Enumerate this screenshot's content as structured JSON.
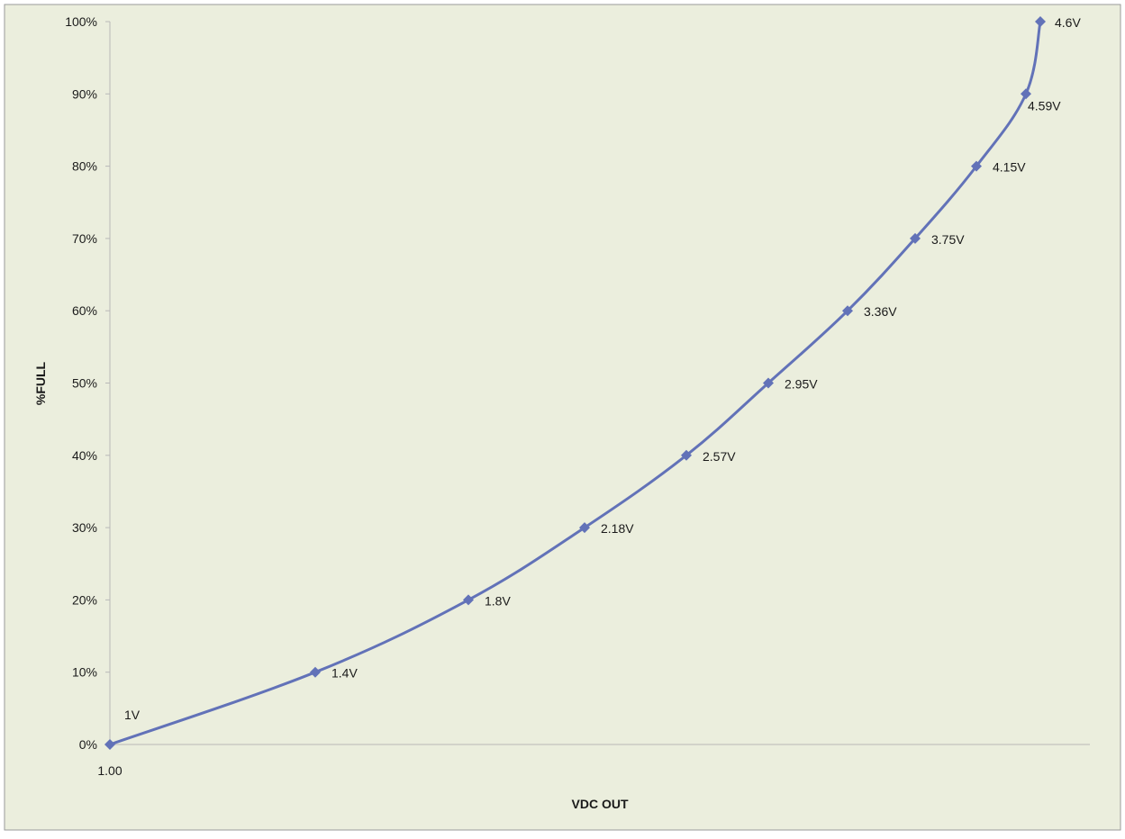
{
  "chart_data": {
    "type": "line",
    "xlabel": "VDC OUT",
    "ylabel": "%FULL",
    "x_tick_labels": [
      "1.00"
    ],
    "y_tick_labels": [
      "0%",
      "10%",
      "20%",
      "30%",
      "40%",
      "50%",
      "60%",
      "70%",
      "80%",
      "90%",
      "100%"
    ],
    "ylim": [
      0,
      100
    ],
    "grid": false,
    "legend": "none",
    "series": [
      {
        "color": "#6272b8",
        "points": [
          {
            "y": 0,
            "label": "1V"
          },
          {
            "y": 10,
            "label": "1.4V"
          },
          {
            "y": 20,
            "label": "1.8V"
          },
          {
            "y": 30,
            "label": "2.18V"
          },
          {
            "y": 40,
            "label": "2.57V"
          },
          {
            "y": 50,
            "label": "2.95V"
          },
          {
            "y": 60,
            "label": "3.36V"
          },
          {
            "y": 70,
            "label": "3.75V"
          },
          {
            "y": 80,
            "label": "4.15V"
          },
          {
            "y": 90,
            "label": "4.59V"
          },
          {
            "y": 100,
            "label": "4.6V"
          }
        ]
      }
    ],
    "colors": {
      "background": "#ebeedd",
      "border": "#9a9a9a",
      "axis": "#b8b8b8",
      "series": "#6272b8"
    }
  }
}
